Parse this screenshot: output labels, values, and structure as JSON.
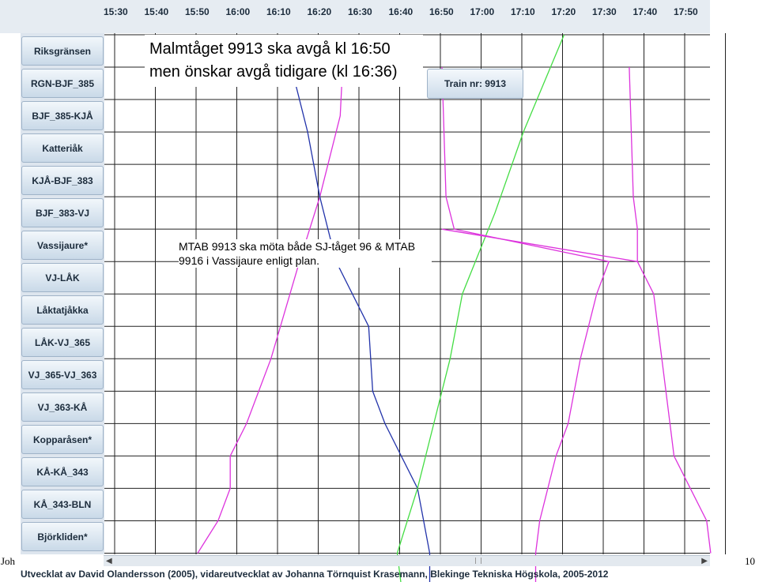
{
  "header": {
    "times": [
      "15:30",
      "15:40",
      "15:50",
      "16:00",
      "16:10",
      "16:20",
      "16:30",
      "16:40",
      "16:50",
      "17:00",
      "17:10",
      "17:20",
      "17:30",
      "17:40",
      "17:50"
    ]
  },
  "sidebar": {
    "stations": [
      "Riksgränsen",
      "RGN-BJF_385",
      "BJF_385-KJÅ",
      "Katteriåk",
      "KJÅ-BJF_383",
      "BJF_383-VJ",
      "Vassijaure*",
      "VJ-LÅK",
      "Låktatjåkka",
      "LÅK-VJ_365",
      "VJ_365-VJ_363",
      "VJ_363-KÅ",
      "Kopparåsen*",
      "KÅ-KÅ_343",
      "KÅ_343-BLN",
      "Björkliden*"
    ]
  },
  "tooltip": {
    "train_label": "Train nr: 9913"
  },
  "callouts": {
    "top": "Malmtåget 9913 ska avgå kl 16:50 men önskar avgå tidigare (kl 16:36)",
    "middle": "MTAB 9913 ska möta både SJ-tåget 96 & MTAB 9916 i Vassijaure enligt plan."
  },
  "footer": {
    "credit": "Utvecklat av David Olandersson (2005), vidareutvecklat av Johanna Törnquist Krasemann, Blekinge Tekniska Högskola, 2005-2012"
  },
  "slide": {
    "left_cut_text": "Joh",
    "page_number": "10"
  },
  "scrollbar": {
    "left_arrow": "◀",
    "right_arrow": "▶"
  },
  "colors": {
    "grid": "#222222",
    "train_blue": "#2233aa",
    "train_green": "#44dd44",
    "train_magenta": "#dd33dd",
    "header_bg": "#e6ecf2",
    "sidebar_bg": "#dde5ee"
  },
  "chart_data": {
    "type": "time-distance train graph",
    "x_unit": "time",
    "y_unit": "station index",
    "series": [
      {
        "color": "magenta",
        "points": [
          [
            "16:26",
            0
          ],
          [
            "16:25",
            2.5
          ],
          [
            "16:20",
            5
          ],
          [
            "16:15",
            7
          ],
          [
            "16:08",
            10
          ],
          [
            "16:02",
            12
          ],
          [
            "15:58",
            13
          ],
          [
            "15:58",
            14
          ],
          [
            "15:55",
            15
          ],
          [
            "15:50",
            16
          ]
        ]
      },
      {
        "color": "blue",
        "points": [
          [
            "16:14",
            1.5
          ],
          [
            "16:17",
            3
          ],
          [
            "16:20",
            5
          ],
          [
            "16:24",
            7
          ],
          [
            "16:32",
            9
          ],
          [
            "16:33",
            11
          ],
          [
            "16:36",
            12
          ],
          [
            "16:44",
            14
          ],
          [
            "16:47",
            16
          ],
          [
            "16:47",
            17
          ]
        ]
      },
      {
        "color": "green",
        "points": [
          [
            "17:20",
            0
          ],
          [
            "17:10",
            3
          ],
          [
            "17:03",
            5.5
          ],
          [
            "16:55",
            8
          ],
          [
            "16:52",
            10
          ],
          [
            "16:48",
            12
          ],
          [
            "16:44",
            14
          ],
          [
            "16:39",
            16
          ],
          [
            "16:40",
            17
          ]
        ]
      },
      {
        "color": "magenta",
        "points": [
          [
            "16:50",
            1
          ],
          [
            "16:51",
            5
          ],
          [
            "16:53",
            6
          ],
          [
            "17:31",
            7
          ],
          [
            "17:28",
            8
          ],
          [
            "17:24",
            10
          ],
          [
            "17:21",
            12
          ],
          [
            "17:18",
            13
          ],
          [
            "17:14",
            15
          ],
          [
            "17:13",
            16
          ],
          [
            "17:13",
            17
          ]
        ]
      },
      {
        "color": "magenta",
        "points": [
          [
            "17:36",
            1
          ],
          [
            "17:37",
            5
          ],
          [
            "17:38",
            6
          ],
          [
            "17:38",
            7
          ],
          [
            "17:42",
            8
          ],
          [
            "17:44",
            10
          ],
          [
            "17:46",
            12
          ],
          [
            "17:47",
            13
          ],
          [
            "17:55",
            15
          ],
          [
            "17:56",
            16
          ]
        ]
      },
      {
        "color": "magenta",
        "points": [
          [
            "16:50",
            6
          ],
          [
            "17:38",
            7
          ]
        ]
      }
    ]
  }
}
